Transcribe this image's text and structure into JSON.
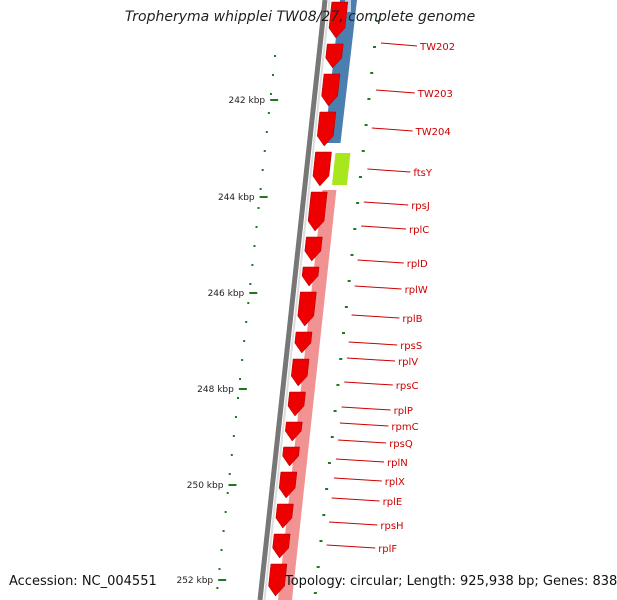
{
  "title": "Tropheryma whipplei TW08/27, complete genome",
  "accession": "Accession: NC_004551",
  "topology": "Topology: circular; Length: 925,938 bp; Genes: 838",
  "colors": {
    "forward_cds": "#ee0000",
    "reverse_light": "#f08080",
    "reverse_blue": "#4a7fb0",
    "ftsY_green": "#a8e61e",
    "backbone": "#777777",
    "tick_green": "#227722",
    "label_red": "#cc0000"
  },
  "axis": {
    "ticks": [
      {
        "label": "242 kbp",
        "kbp": 242
      },
      {
        "label": "244 kbp",
        "kbp": 244
      },
      {
        "label": "246 kbp",
        "kbp": 246
      },
      {
        "label": "248 kbp",
        "kbp": 248
      },
      {
        "label": "250 kbp",
        "kbp": 250
      },
      {
        "label": "252 kbp",
        "kbp": 252
      }
    ]
  },
  "genes": [
    {
      "name": "TW202",
      "strand": "reverse",
      "color": "blue"
    },
    {
      "name": "TW203",
      "strand": "reverse",
      "color": "blue"
    },
    {
      "name": "TW204",
      "strand": "reverse",
      "color": "blue"
    },
    {
      "name": "ftsY",
      "strand": "reverse",
      "color": "green"
    },
    {
      "name": "rpsJ",
      "strand": "forward"
    },
    {
      "name": "rplC",
      "strand": "forward"
    },
    {
      "name": "rplD",
      "strand": "forward"
    },
    {
      "name": "rplW",
      "strand": "forward"
    },
    {
      "name": "rplB",
      "strand": "forward"
    },
    {
      "name": "rpsS",
      "strand": "forward"
    },
    {
      "name": "rplV",
      "strand": "forward"
    },
    {
      "name": "rpsC",
      "strand": "forward"
    },
    {
      "name": "rplP",
      "strand": "forward"
    },
    {
      "name": "rpmC",
      "strand": "forward"
    },
    {
      "name": "rpsQ",
      "strand": "forward"
    },
    {
      "name": "rplN",
      "strand": "forward"
    },
    {
      "name": "rplX",
      "strand": "forward"
    },
    {
      "name": "rplE",
      "strand": "forward"
    },
    {
      "name": "rpsH",
      "strand": "forward"
    },
    {
      "name": "rplF",
      "strand": "forward"
    }
  ]
}
